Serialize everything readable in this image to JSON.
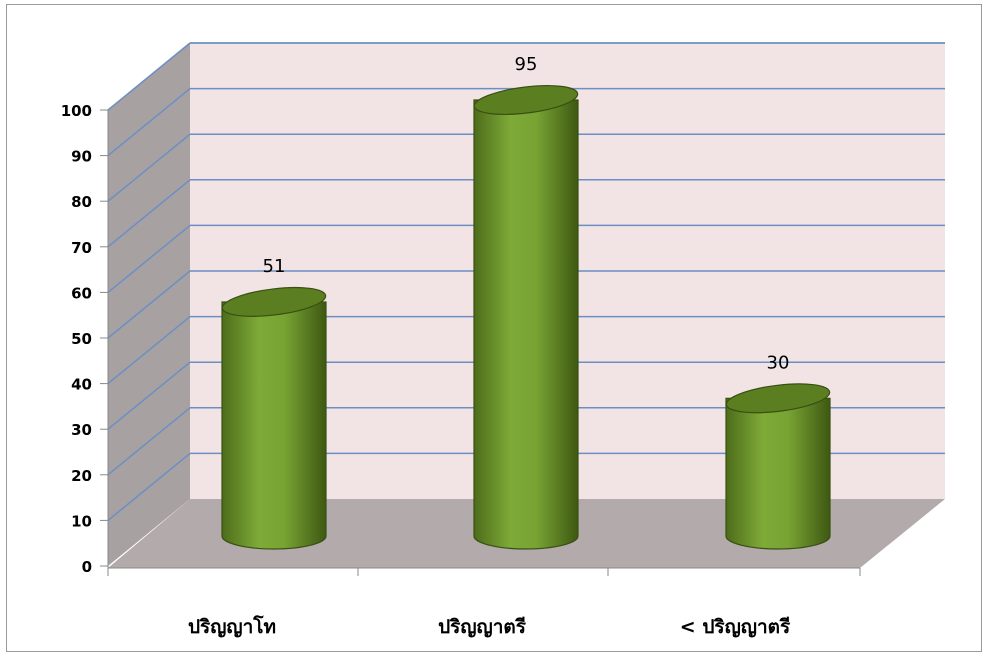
{
  "chart_data": {
    "type": "bar",
    "style": "3d-cylinder",
    "categories": [
      "ปริญญาโท",
      "ปริญญาตรี",
      "< ปริญญาตรี"
    ],
    "values": [
      51,
      95,
      30
    ],
    "data_labels": [
      "51",
      "95",
      "30"
    ],
    "yticks": [
      "0",
      "10",
      "20",
      "30",
      "40",
      "50",
      "60",
      "70",
      "80",
      "90",
      "100"
    ],
    "ylim": [
      0,
      110
    ],
    "grid": true,
    "legend": "none",
    "colors": {
      "bar_front": "#77a032",
      "bar_dark": "#3f5a14",
      "bar_top": "#5b7f20",
      "back_wall": "#f2e4e5",
      "side_wall": "#a8a1a1",
      "floor": "#b3aaab",
      "gridline": "#6b8fc4"
    }
  }
}
